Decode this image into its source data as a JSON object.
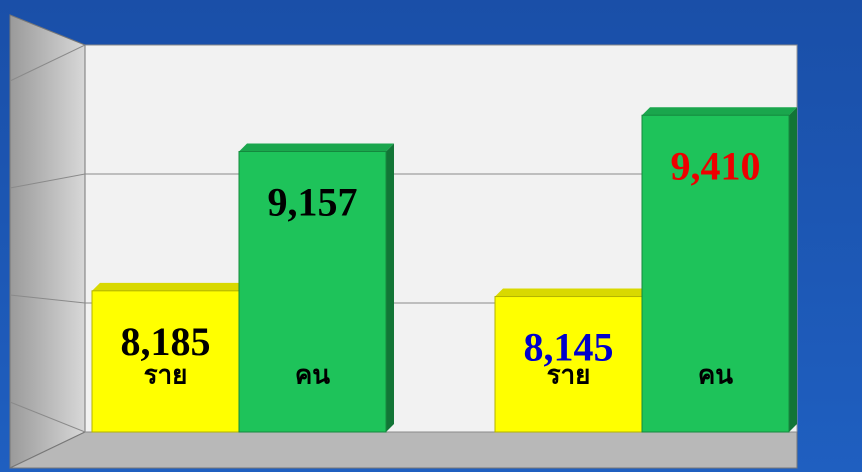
{
  "chart_data": {
    "type": "bar3d",
    "categories": [
      null,
      null
    ],
    "series": [
      {
        "name": "ราย",
        "color": "#ffff00",
        "values": [
          8185,
          8145
        ],
        "value_labels": [
          "8,185",
          "8,145"
        ],
        "value_label_colors": [
          "#000000",
          "#0000cc"
        ]
      },
      {
        "name": "คน",
        "color": "#1ec35a",
        "values": [
          9157,
          9410
        ],
        "value_labels": [
          "9,157",
          "9,410"
        ],
        "value_label_colors": [
          "#000000",
          "#ee0000"
        ]
      }
    ],
    "ylim": [
      7200,
      9900
    ],
    "yticks": [
      7200,
      8100,
      9000,
      9900
    ],
    "grid": true
  }
}
